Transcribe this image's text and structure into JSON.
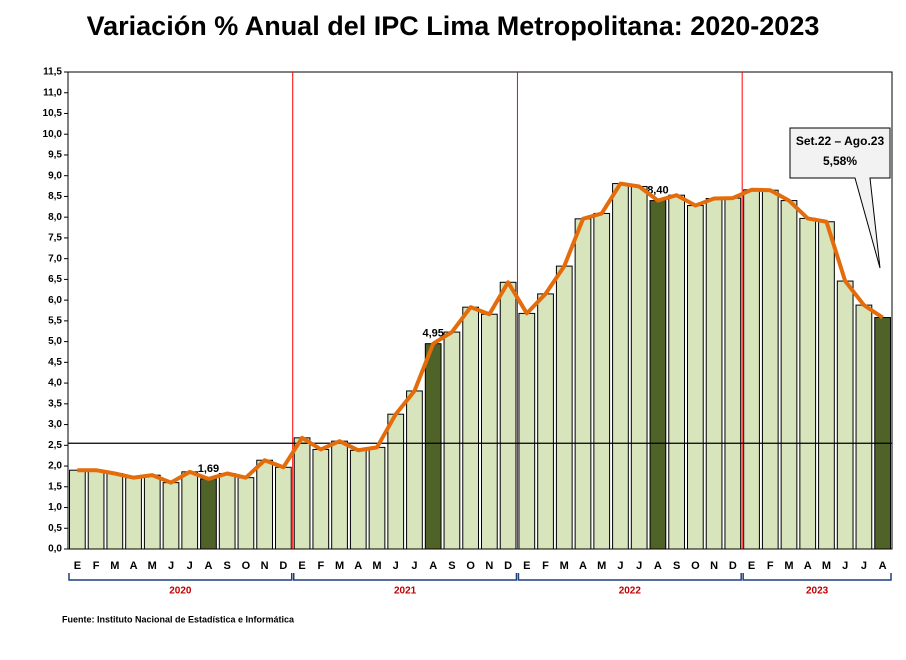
{
  "chart_data": {
    "type": "bar-line",
    "title": "Variación % Anual del IPC Lima Metropolitana: 2020-2023",
    "source": "Fuente: Instituto Nacional de Estadística e Informática",
    "categories": [
      "E",
      "F",
      "M",
      "A",
      "M",
      "J",
      "J",
      "A",
      "S",
      "O",
      "N",
      "D",
      "E",
      "F",
      "M",
      "A",
      "M",
      "J",
      "J",
      "A",
      "S",
      "O",
      "N",
      "D",
      "E",
      "F",
      "M",
      "A",
      "M",
      "J",
      "J",
      "A",
      "S",
      "O",
      "N",
      "D",
      "E",
      "F",
      "M",
      "A",
      "M",
      "J",
      "J",
      "A"
    ],
    "years": [
      "2020",
      "2021",
      "2022",
      "2023"
    ],
    "values": [
      1.9,
      1.9,
      1.82,
      1.72,
      1.78,
      1.6,
      1.86,
      1.69,
      1.82,
      1.72,
      2.14,
      1.97,
      2.68,
      2.4,
      2.6,
      2.38,
      2.45,
      3.25,
      3.81,
      4.95,
      5.23,
      5.83,
      5.66,
      6.43,
      5.68,
      6.15,
      6.82,
      7.96,
      8.09,
      8.81,
      8.74,
      8.4,
      8.53,
      8.28,
      8.45,
      8.46,
      8.66,
      8.65,
      8.4,
      7.97,
      7.89,
      6.46,
      5.88,
      5.58
    ],
    "value_labels": [
      null,
      null,
      null,
      null,
      null,
      null,
      null,
      "1,69",
      null,
      null,
      null,
      null,
      null,
      null,
      null,
      null,
      null,
      null,
      null,
      "4,95",
      null,
      null,
      null,
      null,
      null,
      null,
      null,
      null,
      null,
      null,
      null,
      "8,40",
      null,
      null,
      null,
      null,
      null,
      null,
      null,
      null,
      null,
      null,
      null,
      null
    ],
    "bar_colors": [
      "#d8e4bc",
      "#d8e4bc",
      "#d8e4bc",
      "#d8e4bc",
      "#d8e4bc",
      "#d8e4bc",
      "#d8e4bc",
      "#4f6228",
      "#d8e4bc",
      "#d8e4bc",
      "#d8e4bc",
      "#d8e4bc",
      "#d8e4bc",
      "#d8e4bc",
      "#d8e4bc",
      "#d8e4bc",
      "#d8e4bc",
      "#d8e4bc",
      "#d8e4bc",
      "#4f6228",
      "#d8e4bc",
      "#d8e4bc",
      "#d8e4bc",
      "#d8e4bc",
      "#d8e4bc",
      "#d8e4bc",
      "#d8e4bc",
      "#d8e4bc",
      "#d8e4bc",
      "#d8e4bc",
      "#d8e4bc",
      "#4f6228",
      "#d8e4bc",
      "#d8e4bc",
      "#d8e4bc",
      "#d8e4bc",
      "#d8e4bc",
      "#d8e4bc",
      "#d8e4bc",
      "#d8e4bc",
      "#d8e4bc",
      "#d8e4bc",
      "#d8e4bc",
      "#4f6228"
    ],
    "line_color": "#e46c0a",
    "reference_line": 2.55,
    "annotation": [
      "Set.22 – Ago.23",
      "5,58%"
    ],
    "ylim": [
      0,
      11.5
    ],
    "yticks": [
      {
        "value": 0,
        "label": "0,0"
      },
      {
        "value": 0.5,
        "label": "0,5"
      },
      {
        "value": 1,
        "label": "1,0"
      },
      {
        "value": 1.5,
        "label": "1,5"
      },
      {
        "value": 2,
        "label": "2,0"
      },
      {
        "value": 2.5,
        "label": "2,5"
      },
      {
        "value": 3,
        "label": "3,0"
      },
      {
        "value": 3.5,
        "label": "3,5"
      },
      {
        "value": 4,
        "label": "4,0"
      },
      {
        "value": 4.5,
        "label": "4,5"
      },
      {
        "value": 5,
        "label": "5,0"
      },
      {
        "value": 5.5,
        "label": "5,5"
      },
      {
        "value": 6,
        "label": "6,0"
      },
      {
        "value": 6.5,
        "label": "6,5"
      },
      {
        "value": 7,
        "label": "7,0"
      },
      {
        "value": 7.5,
        "label": "7,5"
      },
      {
        "value": 8,
        "label": "8,0"
      },
      {
        "value": 8.5,
        "label": "8,5"
      },
      {
        "value": 9,
        "label": "9,0"
      },
      {
        "value": 9.5,
        "label": "9,5"
      },
      {
        "value": 10,
        "label": "10,0"
      },
      {
        "value": 10.5,
        "label": "10,5"
      },
      {
        "value": 11,
        "label": "11,0"
      },
      {
        "value": 11.5,
        "label": "11,5"
      }
    ]
  }
}
